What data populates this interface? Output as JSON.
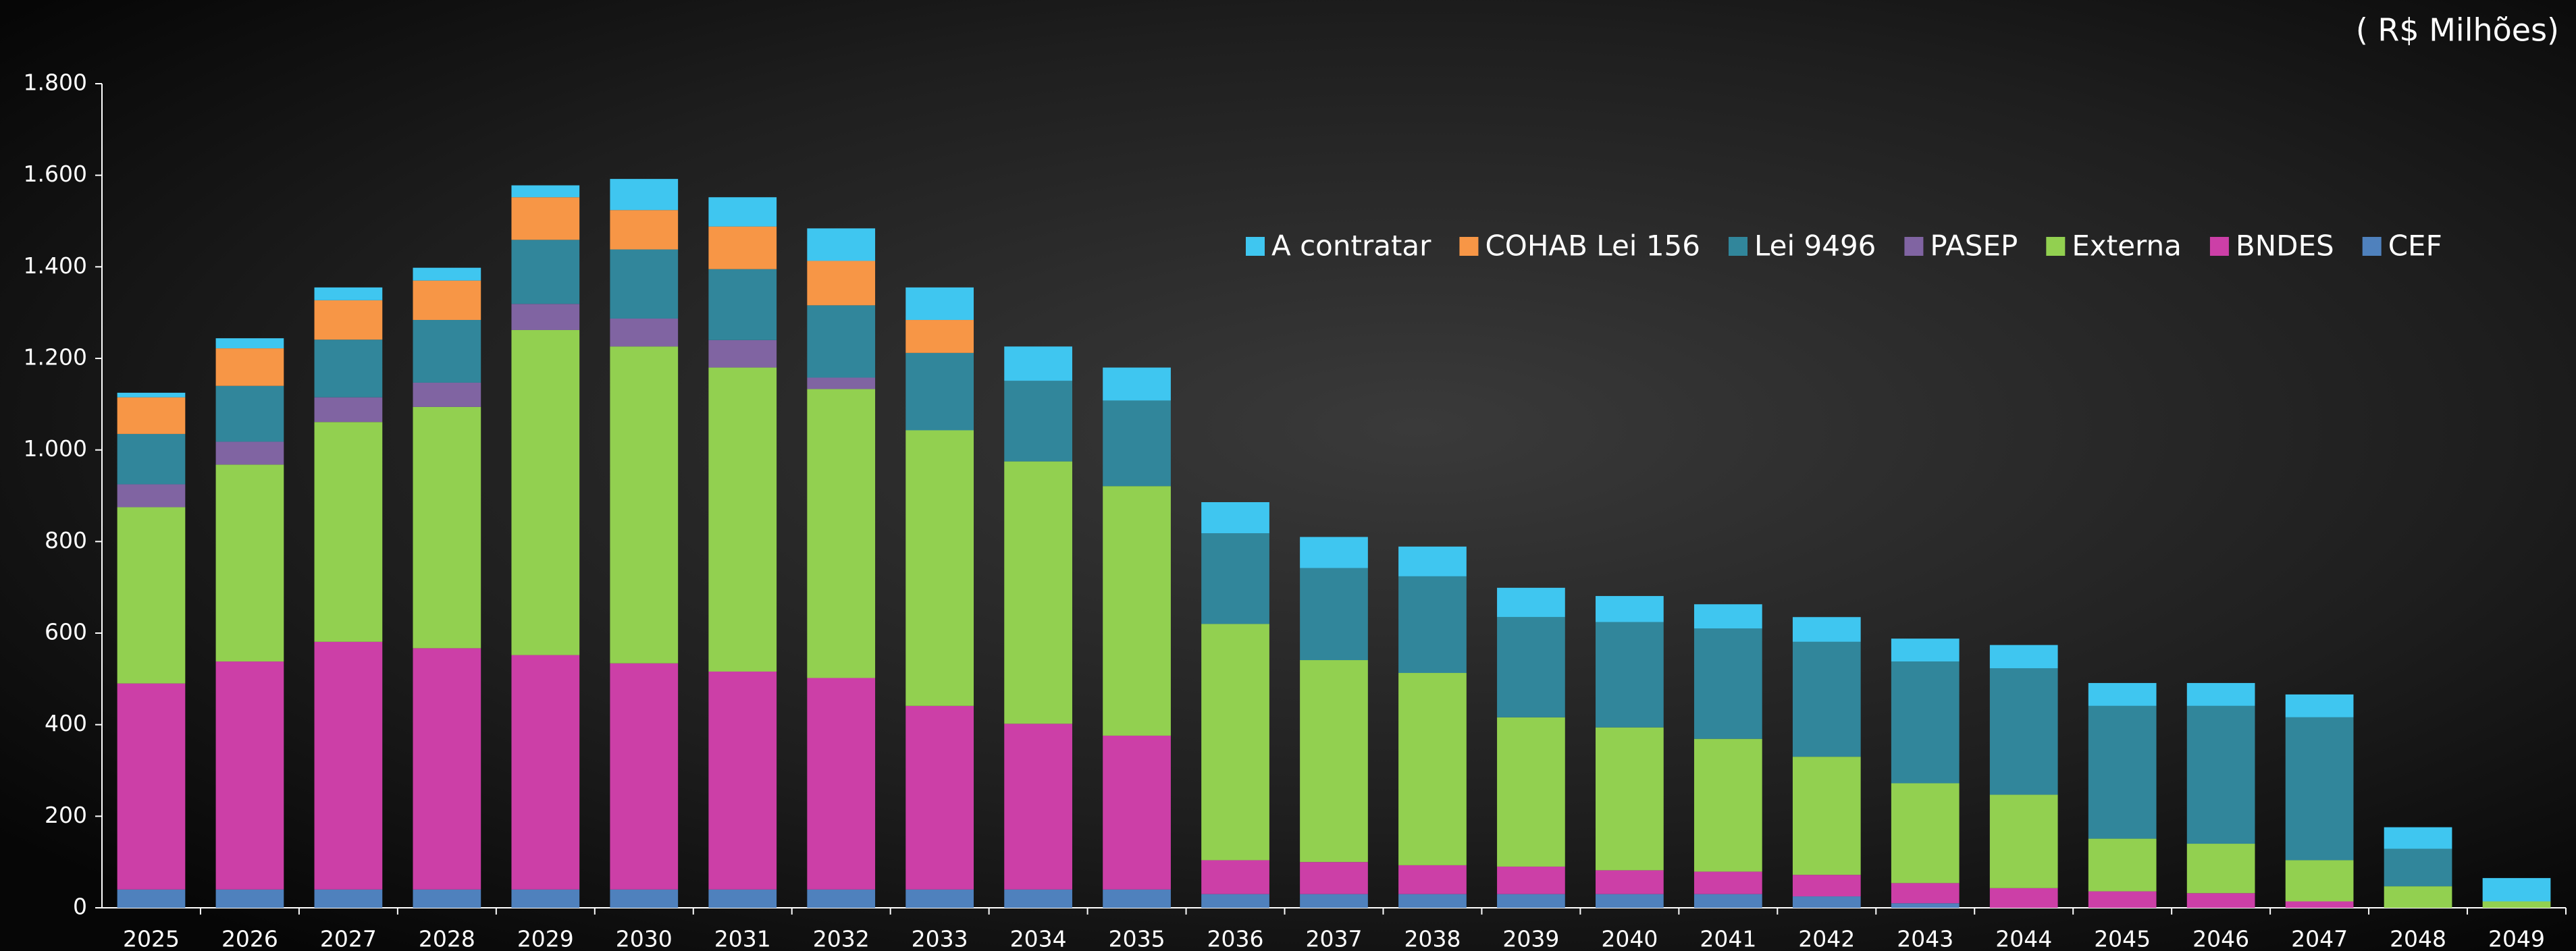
{
  "chart_data": {
    "type": "stacked_bar",
    "unit_note": "( R$ Milhões)",
    "categories": [
      "2025",
      "2026",
      "2027",
      "2028",
      "2029",
      "2030",
      "2031",
      "2032",
      "2033",
      "2034",
      "2035",
      "2036",
      "2037",
      "2038",
      "2039",
      "2040",
      "2041",
      "2042",
      "2043",
      "2044",
      "2045",
      "2046",
      "2047",
      "2048",
      "2049"
    ],
    "series": [
      {
        "name": "CEF",
        "color": "#4f81bd",
        "values": [
          40,
          40,
          40,
          40,
          40,
          40,
          40,
          40,
          40,
          40,
          40,
          30,
          30,
          30,
          30,
          30,
          30,
          25,
          10,
          0,
          0,
          0,
          0,
          0,
          0
        ]
      },
      {
        "name": "BNDES",
        "color": "#cc3fa7",
        "values": [
          450,
          498,
          541,
          527,
          512,
          494,
          476,
          462,
          401,
          362,
          336,
          74,
          70,
          63,
          60,
          52,
          49,
          47,
          44,
          43,
          36,
          32,
          14,
          0,
          0
        ]
      },
      {
        "name": "Externa",
        "color": "#92d050",
        "values": [
          385,
          430,
          480,
          527,
          710,
          692,
          664,
          631,
          602,
          573,
          545,
          516,
          441,
          420,
          326,
          312,
          290,
          258,
          218,
          204,
          115,
          108,
          90,
          47,
          14
        ]
      },
      {
        "name": "PASEP",
        "color": "#8064a2",
        "values": [
          50,
          50,
          54,
          53,
          57,
          61,
          60,
          25,
          0,
          0,
          0,
          0,
          0,
          0,
          0,
          0,
          0,
          0,
          0,
          0,
          0,
          0,
          0,
          0,
          0
        ]
      },
      {
        "name": "Lei 9496",
        "color": "#31869b",
        "values": [
          110,
          122,
          126,
          137,
          140,
          151,
          155,
          158,
          169,
          176,
          187,
          198,
          201,
          211,
          219,
          230,
          241,
          251,
          266,
          276,
          290,
          301,
          312,
          82,
          0
        ]
      },
      {
        "name": "COHAB Lei 156",
        "color": "#f79646",
        "values": [
          80,
          82,
          86,
          86,
          93,
          86,
          93,
          97,
          72,
          0,
          0,
          0,
          0,
          0,
          0,
          0,
          0,
          0,
          0,
          0,
          0,
          0,
          0,
          0,
          0
        ]
      },
      {
        "name": "A contratar",
        "color": "#3fc6f0",
        "values": [
          10,
          22,
          28,
          28,
          26,
          68,
          64,
          71,
          71,
          75,
          72,
          68,
          68,
          65,
          64,
          57,
          53,
          54,
          50,
          51,
          50,
          50,
          50,
          47,
          51
        ]
      }
    ],
    "ylim": [
      0,
      1800
    ],
    "yticks": [
      0,
      200,
      400,
      600,
      800,
      {
        "value": 1000,
        "label": "1.000"
      },
      {
        "value": 1200,
        "label": "1.200"
      },
      {
        "value": 1400,
        "label": "1.400"
      },
      {
        "value": 1600,
        "label": "1.600"
      },
      {
        "value": 1800,
        "label": "1.800"
      }
    ],
    "grid": false,
    "legend": "top-right"
  }
}
